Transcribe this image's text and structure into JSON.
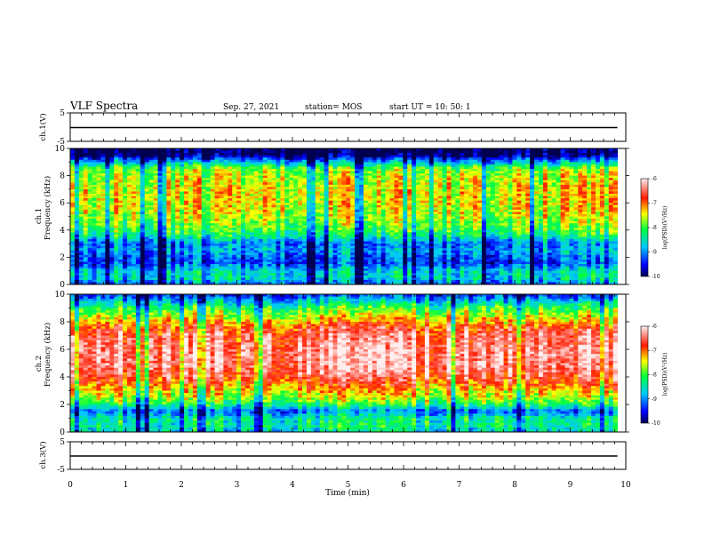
{
  "header": {
    "title": "VLF Spectra",
    "date": "Sep. 27, 2021",
    "station": "station= MOS",
    "start": "start  UT =   10: 50: 1"
  },
  "chart_data": [
    {
      "type": "line",
      "panel": "ch1-waveform",
      "ylabel": "ch.1(V)",
      "yticks": [
        "5",
        "-5"
      ],
      "ylim": [
        -5,
        5
      ],
      "xlim": [
        0,
        10
      ],
      "series": [
        {
          "x": [
            0,
            9.85
          ],
          "y": [
            0,
            0
          ]
        }
      ]
    },
    {
      "type": "heatmap",
      "panel": "ch1-spectrogram",
      "ylabel": "ch.1\nFrequency (kHz)",
      "ylabel_line1": "ch.1",
      "ylabel_line2": "Frequency (kHz)",
      "yticks": [
        "0",
        "2",
        "4",
        "6",
        "8",
        "10"
      ],
      "ylim": [
        0,
        10
      ],
      "xlim": [
        0,
        10
      ],
      "data_end_min": 9.85,
      "colorbar": {
        "label": "log(PSD)(V²/Hz)",
        "ticks": [
          "-6",
          "-7",
          "-8",
          "-9",
          "-10"
        ],
        "range": [
          -10,
          -6
        ]
      },
      "profile_khz": [
        0,
        0.5,
        1,
        1.5,
        2,
        2.5,
        3,
        3.5,
        4,
        4.5,
        5,
        5.5,
        6,
        6.5,
        7,
        7.5,
        8,
        8.5,
        9,
        9.5,
        10
      ],
      "profile_log_psd": [
        -9.1,
        -8.6,
        -8.6,
        -9.3,
        -9.2,
        -8.9,
        -9.1,
        -8.4,
        -8.0,
        -7.8,
        -7.6,
        -7.5,
        -7.4,
        -7.4,
        -7.4,
        -7.5,
        -7.6,
        -7.8,
        -8.8,
        -10.0,
        -10.0
      ]
    },
    {
      "type": "heatmap",
      "panel": "ch2-spectrogram",
      "ylabel": "ch.2\nFrequency (kHz)",
      "ylabel_line1": "ch.2",
      "ylabel_line2": "Frequency (kHz)",
      "yticks": [
        "0",
        "2",
        "4",
        "6",
        "8",
        "10"
      ],
      "ylim": [
        0,
        10
      ],
      "xlim": [
        0,
        10
      ],
      "data_end_min": 9.85,
      "colorbar": {
        "label": "log(PSD)(V²/Hz)",
        "ticks": [
          "-6",
          "-7",
          "-8",
          "-9",
          "-10"
        ],
        "range": [
          -10,
          -6
        ]
      },
      "profile_khz": [
        0,
        0.5,
        1,
        1.5,
        2,
        2.5,
        3,
        3.5,
        4,
        4.5,
        5,
        5.5,
        6,
        6.5,
        7,
        7.5,
        8,
        8.5,
        9,
        9.5,
        10
      ],
      "profile_log_psd": [
        -8.6,
        -8.3,
        -8.4,
        -9.1,
        -8.1,
        -7.6,
        -7.3,
        -6.9,
        -6.6,
        -6.4,
        -6.3,
        -6.3,
        -6.3,
        -6.4,
        -6.5,
        -6.7,
        -7.2,
        -7.6,
        -8.0,
        -8.7,
        -9.4
      ]
    },
    {
      "type": "line",
      "panel": "ch3-waveform",
      "ylabel": "ch.3(V)",
      "yticks": [
        "5",
        "-5"
      ],
      "ylim": [
        -5,
        5
      ],
      "xlim": [
        0,
        10
      ],
      "xlabel": "Time (min)",
      "xticks": [
        "0",
        "1",
        "2",
        "3",
        "4",
        "5",
        "6",
        "7",
        "8",
        "9",
        "10"
      ],
      "series": [
        {
          "x": [
            0,
            9.85
          ],
          "y": [
            0,
            0
          ]
        }
      ]
    }
  ]
}
